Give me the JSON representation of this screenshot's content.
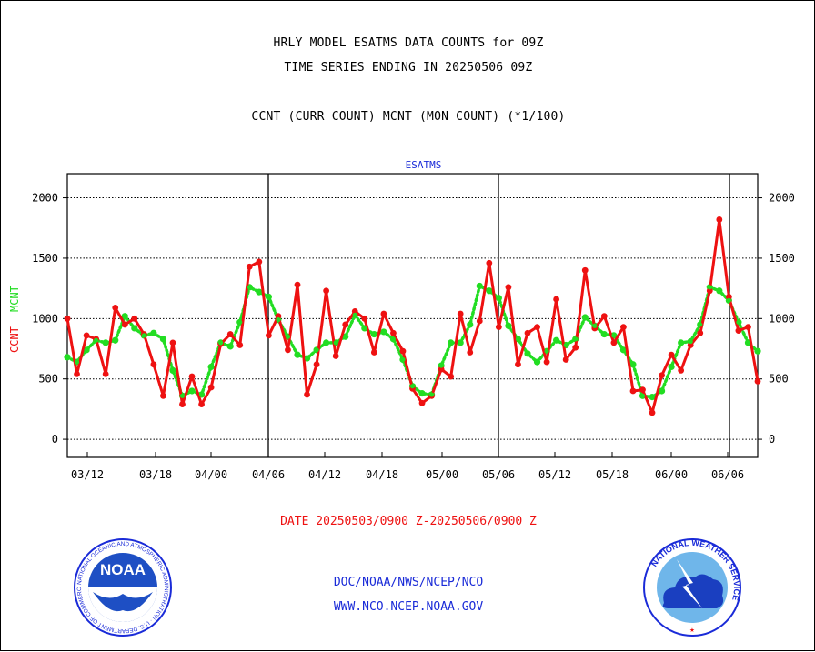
{
  "header": {
    "line1": "HRLY MODEL ESATMS DATA COUNTS for 09Z",
    "line2": "TIME SERIES ENDING IN 20250506 09Z",
    "line3": "CCNT (CURR COUNT) MCNT (MON COUNT) (*1/100)"
  },
  "footer": {
    "date_range": "DATE 20250503/0900 Z-20250506/0900 Z",
    "org_line1": "DOC/NOAA/NWS/NCEP/NCO",
    "org_line2": "WWW.NCO.NCEP.NOAA.GOV",
    "noaa_logo_text": "NOAA",
    "noaa_seal_ring_text": "NATIONAL OCEANIC AND ATMOSPHERIC ADMINISTRATION · U.S. DEPARTMENT OF COMMERCE",
    "nws_logo_ring_text": "NATIONAL WEATHER SERVICE"
  },
  "colors": {
    "ccnt": "#ee1111",
    "mcnt": "#22dd22",
    "subtitle": "#1a2bd8",
    "date_text": "#ee1111",
    "org_text": "#1a2bd8"
  },
  "chart_data": {
    "type": "line",
    "subtitle": "ESATMS",
    "ylabel_left_1": "CCNT",
    "ylabel_left_2": "MCNT",
    "ylim": [
      -150,
      2200
    ],
    "y_ticks": [
      0,
      500,
      1000,
      1500,
      2000
    ],
    "y_tick_labels": [
      "0",
      "500",
      "1000",
      "1500",
      "2000"
    ],
    "x_tick_labels": [
      "03/12",
      "03/18",
      "04/00",
      "04/06",
      "04/12",
      "04/18",
      "05/00",
      "05/06",
      "05/12",
      "05/18",
      "06/00",
      "06/06"
    ],
    "day_boundaries": [
      "04/06",
      "05/06",
      "06/06"
    ],
    "grid": true,
    "series": [
      {
        "name": "CCNT",
        "values": [
          1000,
          540,
          860,
          830,
          540,
          1090,
          950,
          1000,
          870,
          620,
          360,
          800,
          290,
          520,
          290,
          430,
          790,
          870,
          780,
          1430,
          1470,
          860,
          1020,
          740,
          1280,
          370,
          620,
          1230,
          690,
          950,
          1060,
          1000,
          720,
          1040,
          880,
          730,
          420,
          300,
          360,
          580,
          520,
          1040,
          720,
          980,
          1460,
          930,
          1260,
          620,
          880,
          930,
          640,
          1160,
          660,
          760,
          1400,
          920,
          1020,
          800,
          930,
          400,
          410,
          220,
          530,
          700,
          570,
          780,
          880,
          1230,
          1820,
          1180,
          900,
          930,
          480
        ]
      },
      {
        "name": "MCNT",
        "values": [
          680,
          640,
          740,
          820,
          800,
          820,
          1020,
          920,
          860,
          880,
          830,
          570,
          360,
          400,
          370,
          600,
          800,
          770,
          970,
          1260,
          1220,
          1180,
          990,
          850,
          700,
          670,
          740,
          800,
          800,
          850,
          1030,
          920,
          870,
          890,
          830,
          660,
          440,
          380,
          370,
          610,
          800,
          800,
          950,
          1270,
          1230,
          1170,
          940,
          830,
          710,
          640,
          730,
          820,
          780,
          830,
          1010,
          940,
          870,
          860,
          740,
          620,
          360,
          350,
          400,
          600,
          800,
          810,
          950,
          1260,
          1230,
          1150,
          970,
          800,
          730
        ]
      }
    ]
  }
}
